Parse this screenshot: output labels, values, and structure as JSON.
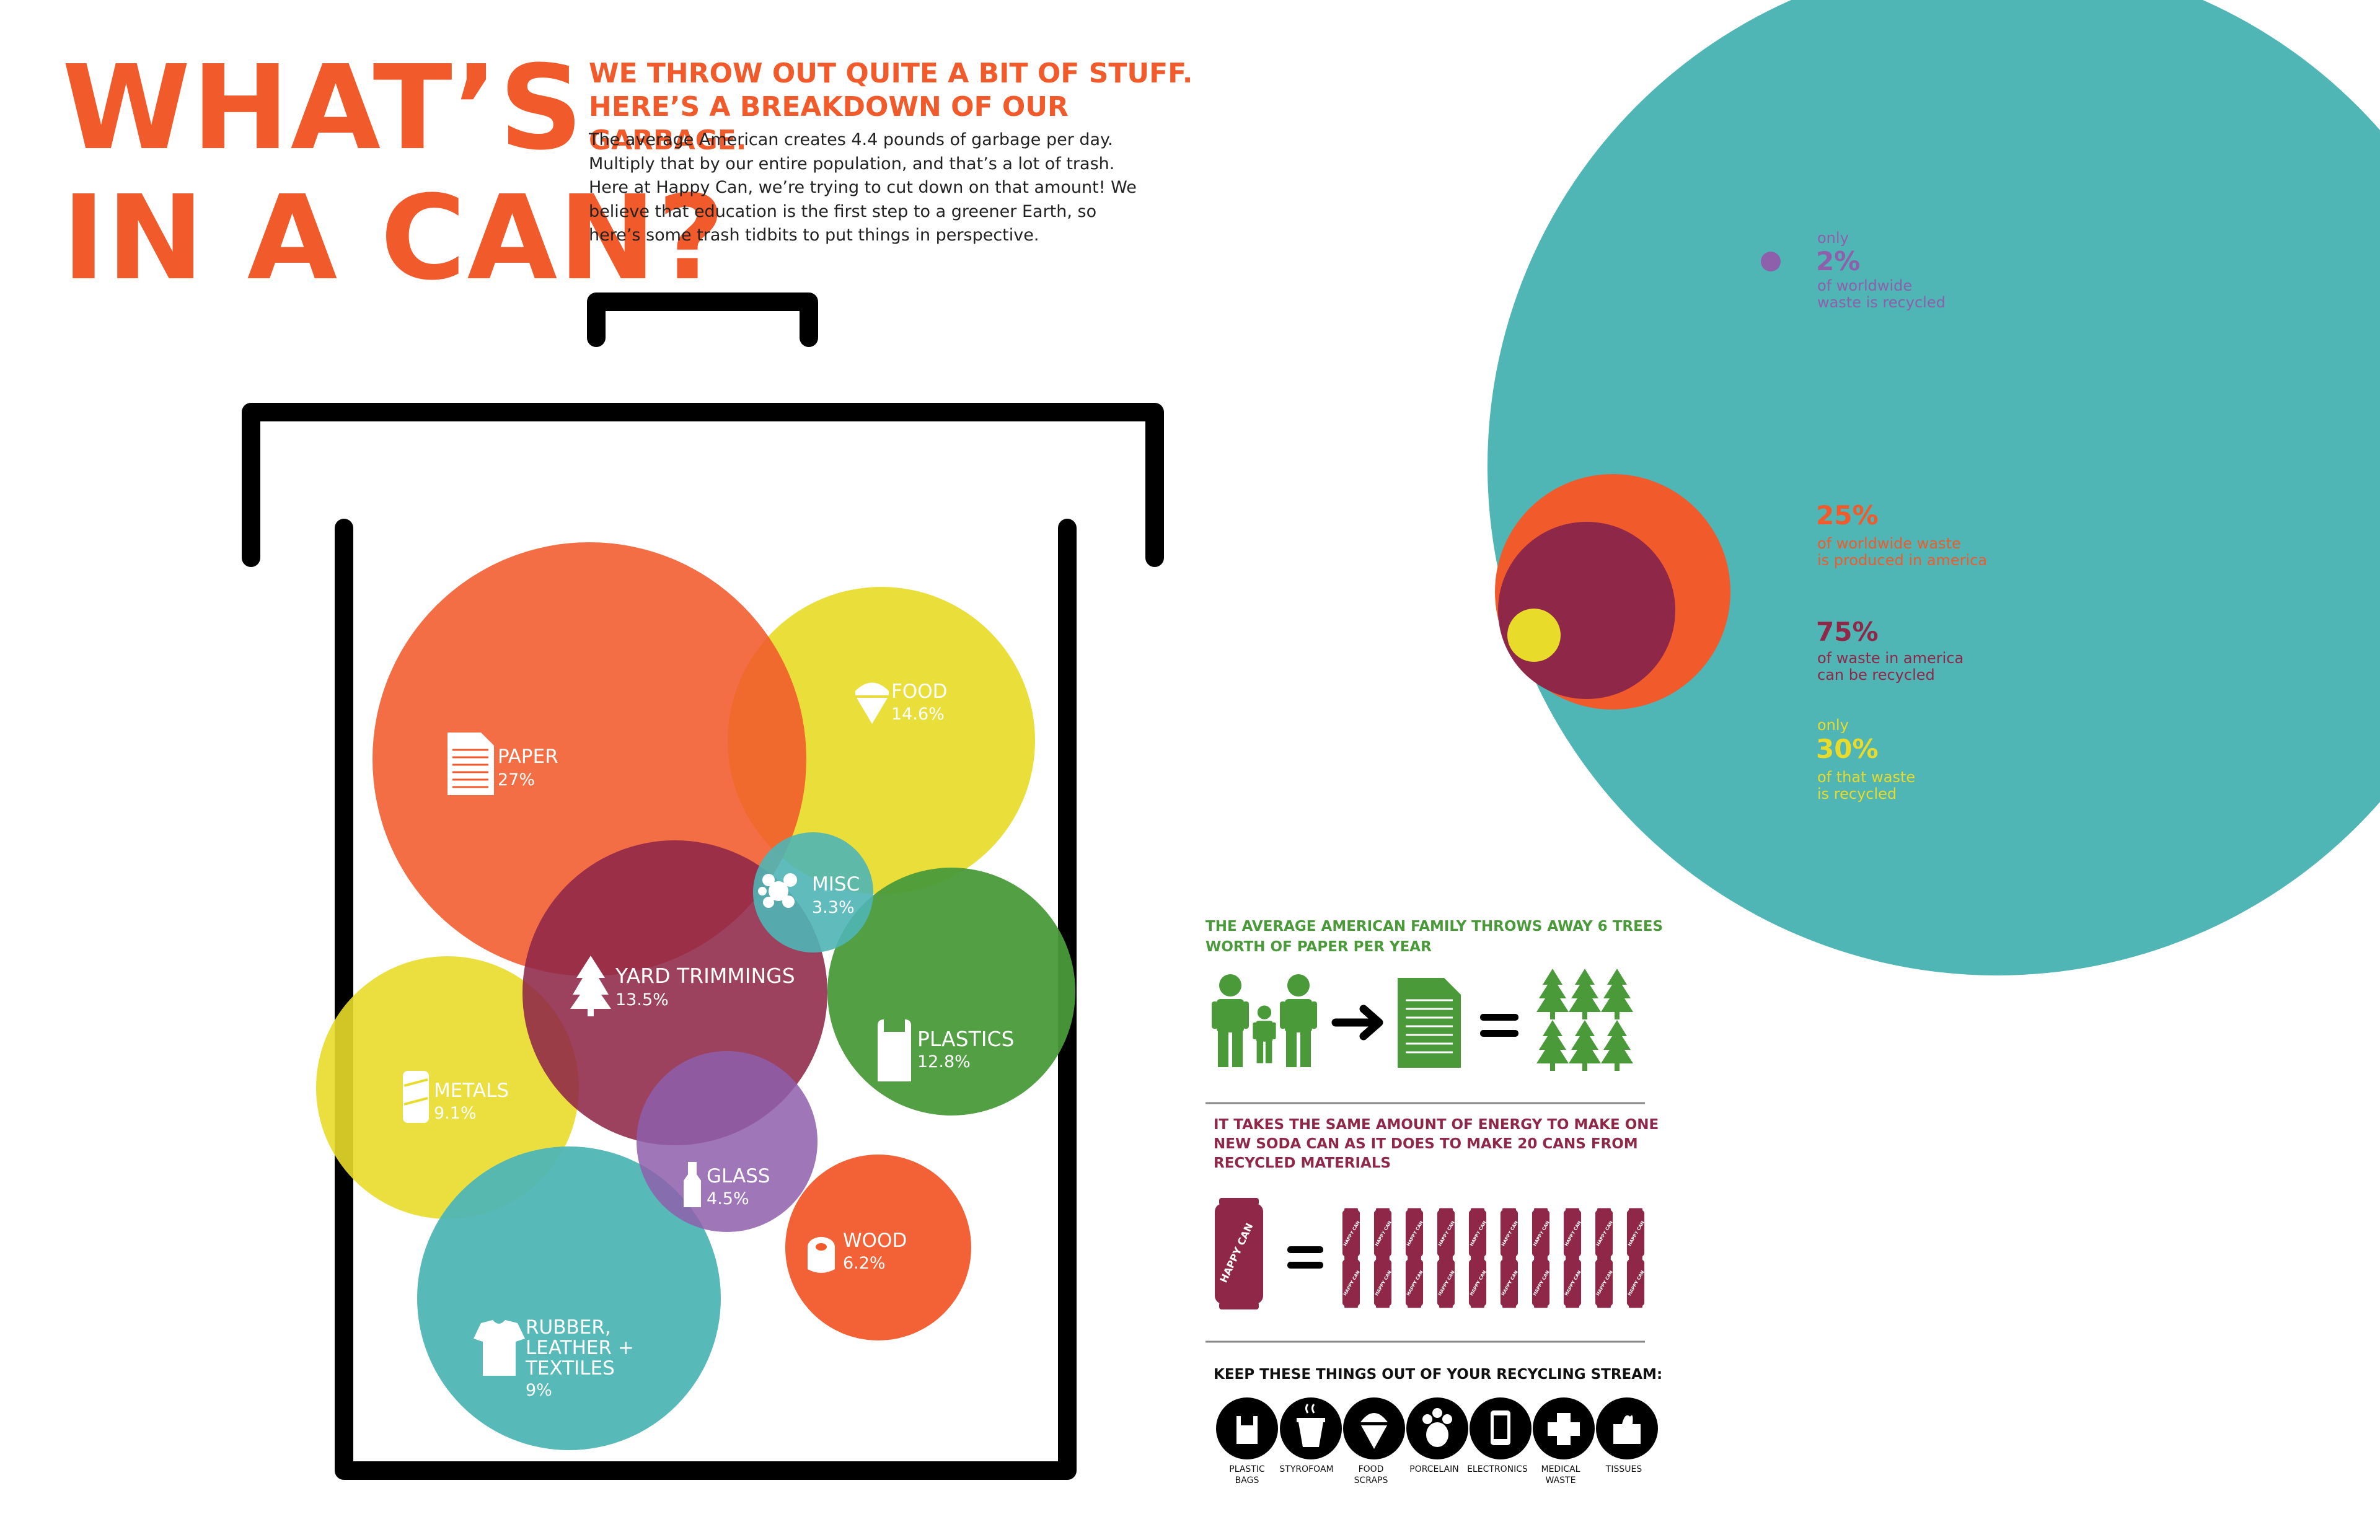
{
  "title": {
    "line1": "WHAT’S",
    "line2": "IN A CAN?"
  },
  "subhead": {
    "line1": "WE THROW OUT QUITE A BIT OF STUFF.",
    "line2": "HERE’S A BREAKDOWN OF OUR GARBAGE."
  },
  "intro": [
    "The average American creates 4.4 pounds of garbage per day.",
    "Multiply that by our entire population, and that’s a lot of trash.",
    "Here at Happy Can, we’re trying to cut down on that amount! We",
    "believe that education is the first step to a greener Earth, so",
    "here’s some trash tidbits to put things in perspective."
  ],
  "colors": {
    "orange": "#f15a2b",
    "yellow": "#e8db2a",
    "teal": "#4fb5b5",
    "maroon": "#8e2748",
    "purple": "#8e5fab",
    "green": "#4a9a3a",
    "black": "#000000"
  },
  "waste": [
    {
      "label": "PAPER",
      "value": "27%",
      "icon": "paper-icon"
    },
    {
      "label": "FOOD",
      "value": "14.6%",
      "icon": "ice-cream-icon"
    },
    {
      "label": "MISC",
      "value": "3.3%",
      "icon": "splat-icon"
    },
    {
      "label": "YARD TRIMMINGS",
      "value": "13.5%",
      "icon": "tree-icon"
    },
    {
      "label": "PLASTICS",
      "value": "12.8%",
      "icon": "plastic-bag-icon"
    },
    {
      "label": "METALS",
      "value": "9.1%",
      "icon": "can-icon"
    },
    {
      "label": "GLASS",
      "value": "4.5%",
      "icon": "bottle-icon"
    },
    {
      "label": "WOOD",
      "value": "6.2%",
      "icon": "log-icon"
    },
    {
      "label_lines": [
        "RUBBER,",
        "LEATHER +",
        "TEXTILES"
      ],
      "value": "9%",
      "icon": "shirt-icon"
    }
  ],
  "stats": {
    "s2": {
      "pre": "only",
      "big": "2%",
      "l1": "of worldwide",
      "l2": "waste is recycled"
    },
    "s25": {
      "big": "25%",
      "l1": "of worldwide waste",
      "l2": "is produced in america"
    },
    "s75": {
      "big": "75%",
      "l1": "of waste in america",
      "l2": "can be recycled"
    },
    "s30": {
      "pre": "only",
      "big": "30%",
      "l1": "of that waste",
      "l2": "is recycled"
    }
  },
  "family": {
    "line1": "THE AVERAGE AMERICAN FAMILY THROWS AWAY 6 TREES",
    "line2": "WORTH OF PAPER PER YEAR"
  },
  "cans": {
    "line1": "IT TAKES THE SAME AMOUNT OF ENERGY TO MAKE ONE",
    "line2": "NEW SODA CAN AS IT DOES TO MAKE 20 CANS FROM",
    "line3": "RECYCLED MATERIALS",
    "can_text": "HAPPY CAN",
    "count": 20
  },
  "keep_out": {
    "title": "KEEP THESE THINGS OUT OF YOUR RECYCLING STREAM:",
    "items": [
      {
        "lines": [
          "PLASTIC",
          "BAGS"
        ],
        "icon": "plastic-bags-icon"
      },
      {
        "lines": [
          "STYROFOAM"
        ],
        "icon": "styrofoam-cup-icon"
      },
      {
        "lines": [
          "FOOD",
          "SCRAPS"
        ],
        "icon": "food-scraps-icon"
      },
      {
        "lines": [
          "PORCELAIN"
        ],
        "icon": "porcelain-icon"
      },
      {
        "lines": [
          "ELECTRONICS"
        ],
        "icon": "phone-icon"
      },
      {
        "lines": [
          "MEDICAL",
          "WASTE"
        ],
        "icon": "medical-cross-icon"
      },
      {
        "lines": [
          "TISSUES"
        ],
        "icon": "tissue-box-icon"
      }
    ]
  }
}
